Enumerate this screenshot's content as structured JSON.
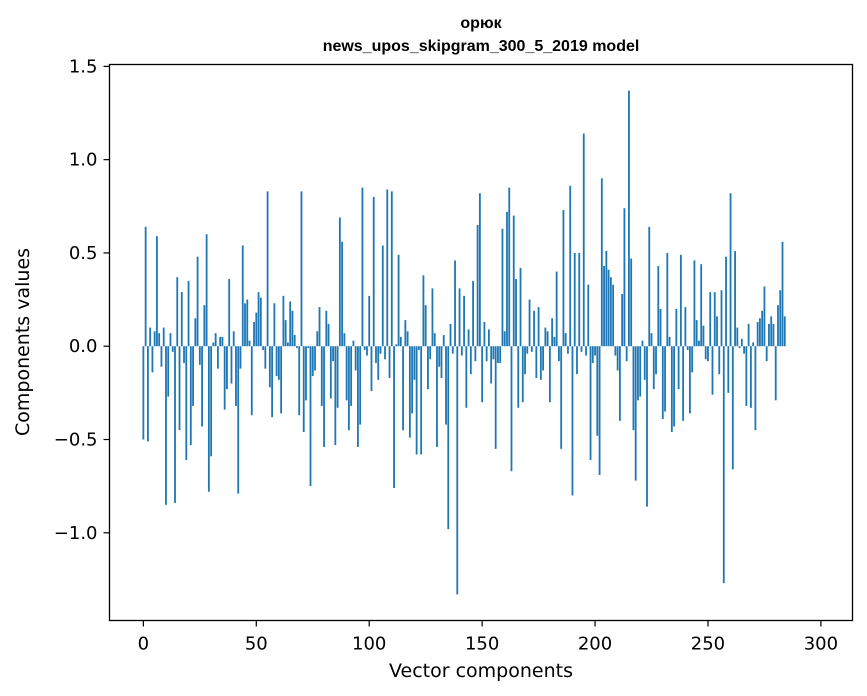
{
  "chart_data": {
    "type": "bar",
    "title_line1": "орюк",
    "title_line2": "news_upos_skipgram_300_5_2019 model",
    "xlabel": "Vector components",
    "ylabel": "Components values",
    "xlim": [
      -15,
      314
    ],
    "ylim": [
      -1.47,
      1.51
    ],
    "xticks": [
      0,
      50,
      100,
      150,
      200,
      250,
      300
    ],
    "xtick_labels": [
      "0",
      "50",
      "100",
      "150",
      "200",
      "250",
      "300"
    ],
    "yticks": [
      -1.0,
      -0.5,
      0.0,
      0.5,
      1.0,
      1.5
    ],
    "ytick_labels": [
      "−1.0",
      "−0.5",
      "0.0",
      "0.5",
      "1.0",
      "1.5"
    ],
    "bar_color": "#1f77b4",
    "values": [
      -0.5,
      0.64,
      -0.51,
      0.1,
      -0.14,
      0.08,
      0.59,
      0.07,
      -0.11,
      0.1,
      -0.85,
      -0.27,
      0.07,
      -0.03,
      -0.84,
      0.37,
      -0.45,
      0.29,
      -0.09,
      -0.61,
      0.35,
      -0.53,
      -0.32,
      0.15,
      0.48,
      -0.1,
      -0.43,
      0.22,
      0.6,
      -0.78,
      -0.59,
      0.02,
      0.07,
      -0.12,
      0.05,
      0.05,
      -0.34,
      -0.23,
      0.36,
      -0.2,
      0.08,
      -0.32,
      -0.79,
      -0.12,
      0.54,
      0.23,
      0.25,
      0.03,
      -0.37,
      0.13,
      0.18,
      0.29,
      0.26,
      -0.02,
      -0.12,
      0.83,
      -0.22,
      -0.38,
      0.23,
      -0.16,
      -0.18,
      -0.36,
      0.27,
      0.14,
      0.02,
      0.24,
      0.19,
      0.06,
      -0.01,
      -0.37,
      0.83,
      -0.46,
      -0.29,
      -0.01,
      -0.75,
      -0.16,
      -0.13,
      0.08,
      0.21,
      -0.32,
      -0.54,
      0.19,
      0.12,
      -0.28,
      -0.08,
      -0.53,
      -0.33,
      0.69,
      0.56,
      0.07,
      -0.29,
      -0.45,
      -0.32,
      0.03,
      -0.13,
      -0.54,
      -0.42,
      0.85,
      -0.02,
      -0.05,
      0.27,
      -0.24,
      0.8,
      -0.09,
      -0.18,
      -0.04,
      0.54,
      -0.07,
      0.84,
      -0.17,
      0.83,
      -0.76,
      0.01,
      0.49,
      0.05,
      -0.45,
      0.14,
      0.08,
      -0.49,
      -0.36,
      -0.18,
      -0.58,
      -0.02,
      -0.58,
      0.38,
      0.22,
      -0.23,
      -0.07,
      0.31,
      0.07,
      -0.54,
      -0.11,
      -0.17,
      0.06,
      -0.42,
      -0.98,
      0.12,
      -0.04,
      0.46,
      -1.33,
      0.31,
      -0.05,
      0.27,
      -0.33,
      0.09,
      -0.15,
      0.35,
      -0.08,
      0.65,
      0.82,
      -0.3,
      0.13,
      -0.08,
      0.09,
      -0.2,
      -0.07,
      -0.55,
      -0.09,
      -0.09,
      0.63,
      0.08,
      0.72,
      0.85,
      -0.67,
      0.7,
      0.36,
      -0.33,
      0.42,
      -0.3,
      -0.15,
      -0.04,
      0.25,
      -0.03,
      0.19,
      -0.17,
      0.21,
      -0.18,
      -0.13,
      0.1,
      0.08,
      -0.3,
      0.15,
      0.05,
      0.4,
      -0.08,
      -0.55,
      0.73,
      0.07,
      -0.04,
      0.86,
      -0.8,
      0.5,
      -0.15,
      0.5,
      -0.03,
      1.14,
      -0.05,
      0.33,
      -0.61,
      -0.09,
      -0.05,
      -0.48,
      -0.69,
      0.9,
      0.43,
      0.51,
      0.41,
      0.37,
      0.33,
      -0.05,
      -0.13,
      -0.4,
      0.28,
      0.74,
      -0.08,
      1.37,
      0.47,
      -0.45,
      -0.72,
      -0.29,
      -0.27,
      0.03,
      -0.18,
      -0.86,
      0.64,
      0.07,
      -0.23,
      -0.15,
      0.43,
      0.2,
      -0.39,
      -0.35,
      0.5,
      0.05,
      -0.46,
      -0.43,
      0.2,
      -0.23,
      0.49,
      -0.4,
      0.21,
      -0.02,
      -0.36,
      -0.14,
      0.46,
      0.14,
      0.03,
      0.44,
      0.11,
      -0.07,
      -0.08,
      0.29,
      -0.26,
      0.29,
      0.16,
      -0.15,
      0.3,
      -1.27,
      0.48,
      -0.25,
      0.82,
      -0.66,
      0.51,
      0.1,
      -0.01,
      0.04,
      -0.04,
      -0.32,
      0.12,
      -0.33,
      0.02,
      -0.45,
      0.13,
      0.15,
      0.19,
      0.32,
      -0.08,
      0.12,
      0.16,
      0.12,
      -0.29,
      0.22,
      0.3,
      0.56,
      0.16
    ]
  }
}
